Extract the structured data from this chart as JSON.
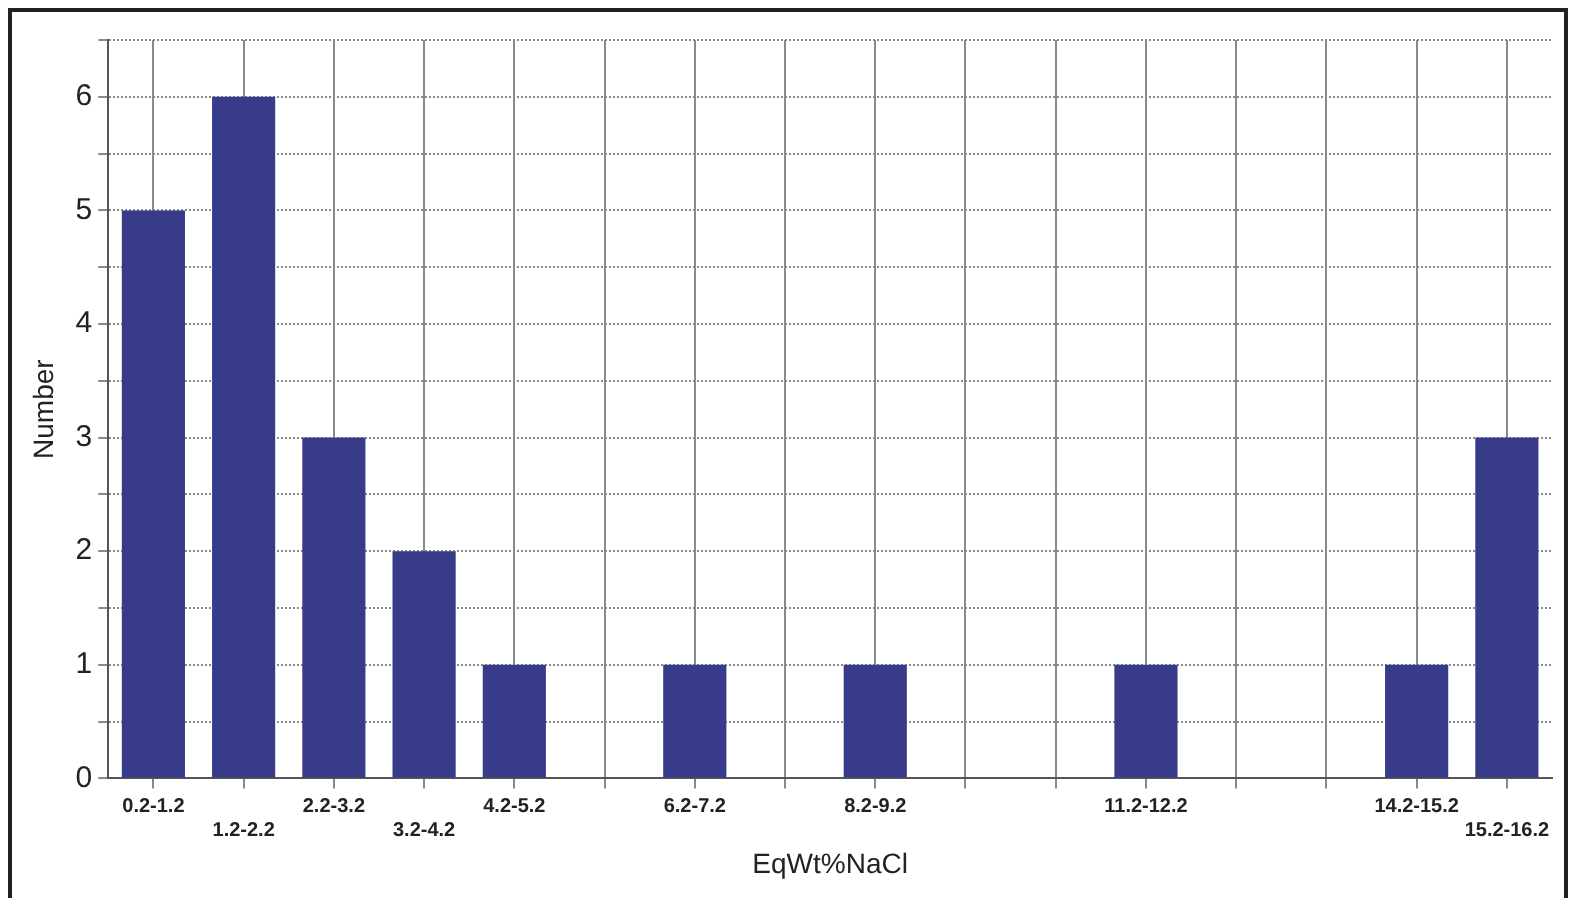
{
  "chart_data": {
    "type": "bar",
    "xlabel": "EqWt%NaCl",
    "ylabel": "Number",
    "categories": [
      "0.2-1.2",
      "1.2-2.2",
      "2.2-3.2",
      "3.2-4.2",
      "4.2-5.2",
      null,
      "6.2-7.2",
      null,
      "8.2-9.2",
      null,
      null,
      "11.2-12.2",
      null,
      null,
      "14.2-15.2",
      "15.2-16.2"
    ],
    "values": [
      5,
      6,
      3,
      2,
      1,
      0,
      1,
      0,
      1,
      0,
      0,
      1,
      0,
      0,
      1,
      3
    ],
    "color": "#383a8a",
    "ylim": [
      0,
      6.5
    ],
    "yticks": [
      0,
      {
        "value": 0.5,
        "label": null
      },
      1,
      {
        "value": 1.5,
        "label": null
      },
      2,
      {
        "value": 2.5,
        "label": null
      },
      3,
      {
        "value": 3.5,
        "label": null
      },
      4,
      {
        "value": 4.5,
        "label": null
      },
      5,
      {
        "value": 5.5,
        "label": null
      },
      6,
      {
        "value": 6.5,
        "label": null
      }
    ],
    "grid": true
  }
}
